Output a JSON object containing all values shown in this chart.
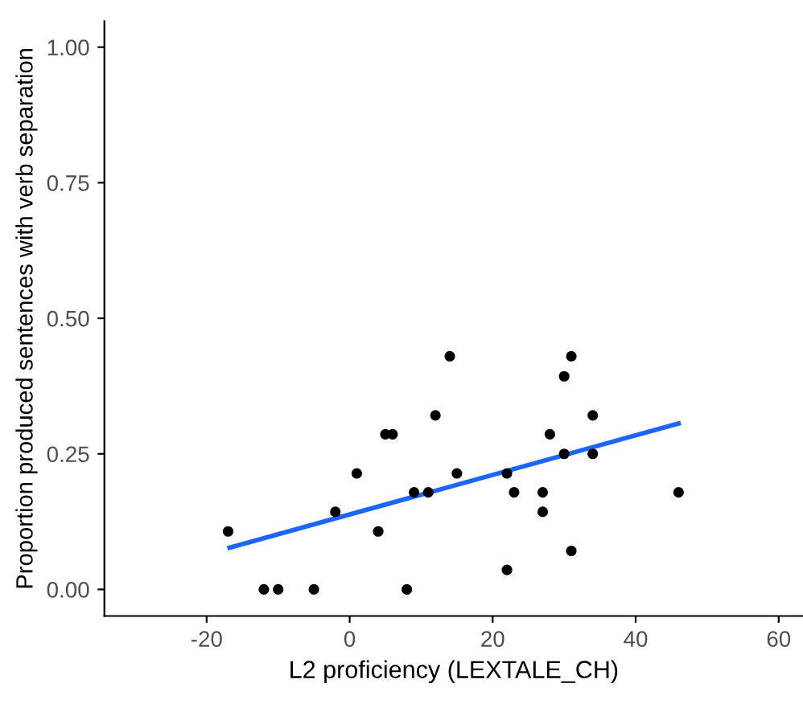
{
  "chart_data": {
    "type": "scatter",
    "xlabel": "L2 proficiency (LEXTALE_CH)",
    "ylabel": "Proportion produced sentences with verb separation",
    "xlim": [
      -34.3,
      63.4
    ],
    "ylim": [
      -0.049,
      1.048
    ],
    "xticks": [
      -20,
      0,
      20,
      40,
      60
    ],
    "yticks": [
      {
        "value": 0,
        "label": "0.00"
      },
      {
        "value": 0.25,
        "label": "0.25"
      },
      {
        "value": 0.5,
        "label": "0.50"
      },
      {
        "value": 0.75,
        "label": "0.75"
      },
      {
        "value": 1,
        "label": "1.00"
      }
    ],
    "grid": false,
    "legend": false,
    "series": [
      {
        "marker": "circle",
        "color": "#000000",
        "x": [
          -17,
          -12,
          -10,
          -5,
          -2,
          1,
          4,
          5,
          6,
          8,
          9,
          11,
          12,
          14,
          15,
          22,
          22,
          23,
          27,
          27,
          28,
          30,
          30,
          31,
          31,
          34,
          34,
          46
        ],
        "values": [
          0.107,
          0,
          0,
          0,
          0.143,
          0.214,
          0.107,
          0.286,
          0.286,
          0,
          0.179,
          0.179,
          0.321,
          0.43,
          0.214,
          0.214,
          0.036,
          0.179,
          0.179,
          0.143,
          0.286,
          0.393,
          0.25,
          0.43,
          0.071,
          0.321,
          0.25,
          0.179
        ]
      },
      {
        "type": "line",
        "color": "#1a66ff",
        "x": [
          -16.8,
          46
        ],
        "values": [
          0.077,
          0.306
        ]
      }
    ]
  }
}
